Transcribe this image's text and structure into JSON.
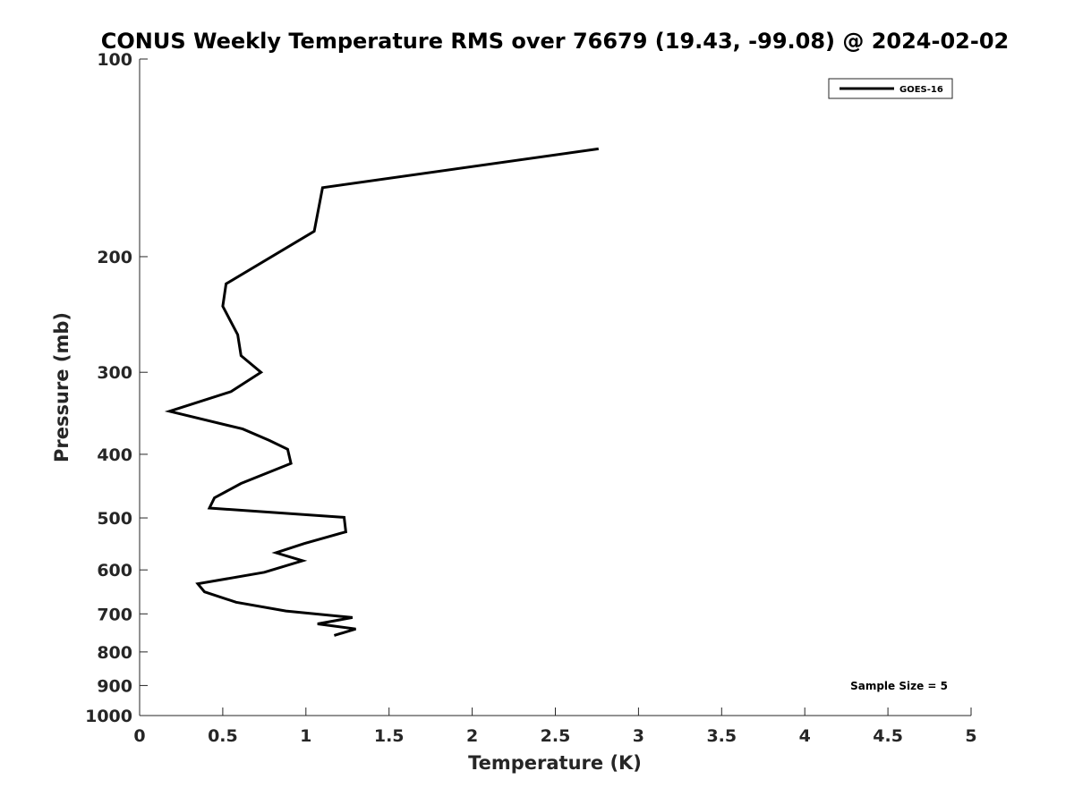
{
  "chart_data": {
    "type": "line",
    "title": "CONUS Weekly Temperature RMS over 76679 (19.43, -99.08) @ 2024-02-02",
    "xlabel": "Temperature (K)",
    "ylabel": "Pressure (mb)",
    "xlim": [
      0,
      5
    ],
    "ylim": [
      100,
      1000
    ],
    "y_scale": "log",
    "y_reversed": true,
    "grid": false,
    "legend_position": "top-right",
    "x_ticks": [
      "0",
      "0.5",
      "1",
      "1.5",
      "2",
      "2.5",
      "3",
      "3.5",
      "4",
      "4.5",
      "5"
    ],
    "y_ticks": [
      "100",
      "200",
      "300",
      "400",
      "500",
      "600",
      "700",
      "800",
      "900",
      "1000"
    ],
    "annotation": "Sample Size = 5",
    "line_color": "#000000",
    "series": [
      {
        "name": "GOES-16",
        "x": [
          2.76,
          1.1,
          1.05,
          0.52,
          0.5,
          0.59,
          0.61,
          0.73,
          0.55,
          0.18,
          0.62,
          0.78,
          0.89,
          0.91,
          0.61,
          0.45,
          0.42,
          1.23,
          1.24,
          0.99,
          0.82,
          0.98,
          0.75,
          0.35,
          0.39,
          0.58,
          0.88,
          1.28,
          1.07,
          1.3,
          1.17
        ],
        "y": [
          137,
          157,
          183,
          220,
          238,
          263,
          283,
          300,
          321,
          344,
          366,
          381,
          393,
          413,
          443,
          466,
          483,
          499,
          525,
          547,
          565,
          581,
          605,
          630,
          648,
          672,
          693,
          709,
          725,
          738,
          755
        ]
      }
    ]
  }
}
